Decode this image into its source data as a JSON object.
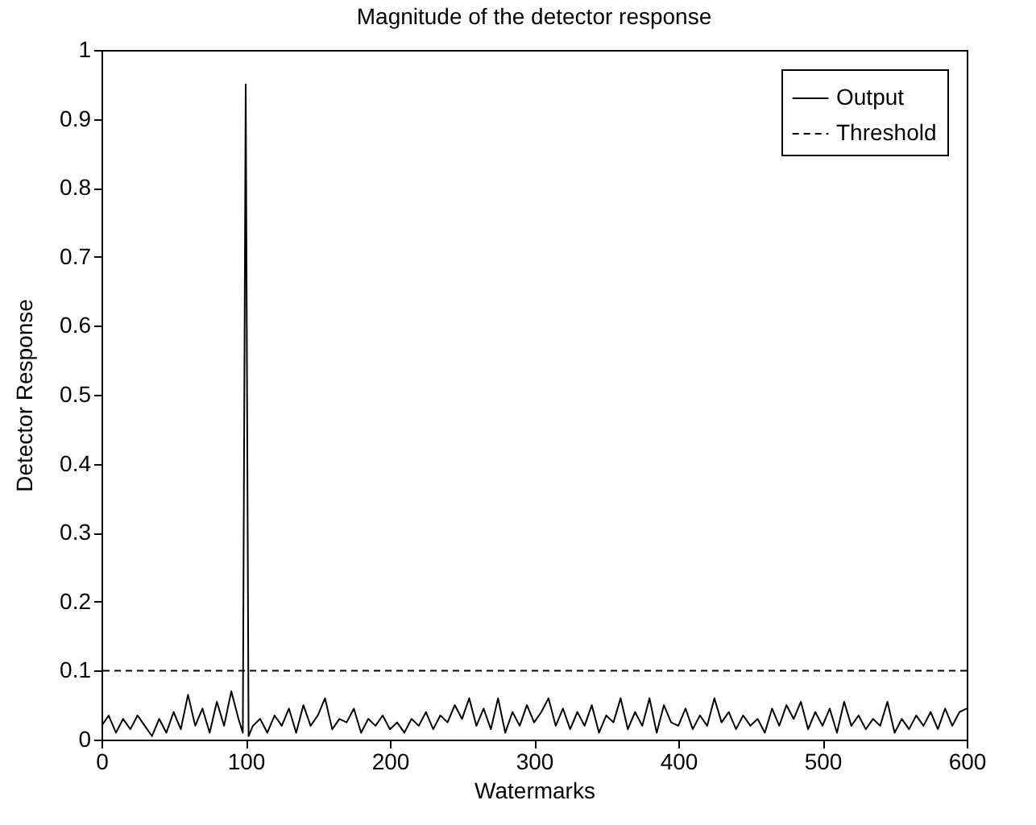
{
  "chart_data": {
    "type": "line",
    "title": "Magnitude of the detector response",
    "xlabel": "Watermarks",
    "ylabel": "Detector Response",
    "xlim": [
      0,
      600
    ],
    "xticks": [
      0,
      100,
      200,
      300,
      400,
      500,
      600
    ],
    "ylim": [
      0,
      1
    ],
    "yticks": [
      0,
      0.1,
      0.2,
      0.3,
      0.4,
      0.5,
      0.6,
      0.7,
      0.8,
      0.9,
      1
    ],
    "grid": false,
    "legend": "top right",
    "line_style": "solid",
    "marker": "none",
    "ref_lines": [
      {
        "axis": "y",
        "value": 0.1,
        "label": "Threshold",
        "color": "#000000",
        "line_style": "dashed"
      }
    ],
    "series": [
      {
        "name": "Output",
        "color": "#000000",
        "x": [
          0,
          5,
          10,
          15,
          20,
          25,
          30,
          35,
          40,
          45,
          50,
          55,
          60,
          65,
          70,
          75,
          80,
          85,
          90,
          95,
          98,
          100,
          102,
          105,
          110,
          115,
          120,
          125,
          130,
          135,
          140,
          145,
          150,
          155,
          160,
          165,
          170,
          175,
          180,
          185,
          190,
          195,
          200,
          205,
          210,
          215,
          220,
          225,
          230,
          235,
          240,
          245,
          250,
          255,
          260,
          265,
          270,
          275,
          280,
          285,
          290,
          295,
          300,
          305,
          310,
          315,
          320,
          325,
          330,
          335,
          340,
          345,
          350,
          355,
          360,
          365,
          370,
          375,
          380,
          385,
          390,
          395,
          400,
          405,
          410,
          415,
          420,
          425,
          430,
          435,
          440,
          445,
          450,
          455,
          460,
          465,
          470,
          475,
          480,
          485,
          490,
          495,
          500,
          505,
          510,
          515,
          520,
          525,
          530,
          535,
          540,
          545,
          550,
          555,
          560,
          565,
          570,
          575,
          580,
          585,
          590,
          595,
          600
        ],
        "values": [
          0.02,
          0.035,
          0.01,
          0.03,
          0.015,
          0.035,
          0.02,
          0.005,
          0.03,
          0.01,
          0.04,
          0.015,
          0.065,
          0.02,
          0.045,
          0.01,
          0.055,
          0.02,
          0.07,
          0.03,
          0.01,
          0.95,
          0.005,
          0.02,
          0.03,
          0.01,
          0.035,
          0.02,
          0.045,
          0.01,
          0.05,
          0.02,
          0.035,
          0.06,
          0.015,
          0.03,
          0.025,
          0.045,
          0.01,
          0.03,
          0.02,
          0.035,
          0.015,
          0.025,
          0.01,
          0.03,
          0.02,
          0.04,
          0.015,
          0.035,
          0.025,
          0.05,
          0.03,
          0.06,
          0.02,
          0.045,
          0.015,
          0.06,
          0.01,
          0.04,
          0.02,
          0.05,
          0.025,
          0.04,
          0.06,
          0.02,
          0.045,
          0.015,
          0.04,
          0.02,
          0.05,
          0.01,
          0.035,
          0.025,
          0.06,
          0.015,
          0.04,
          0.02,
          0.06,
          0.01,
          0.05,
          0.025,
          0.02,
          0.045,
          0.015,
          0.035,
          0.02,
          0.06,
          0.025,
          0.04,
          0.015,
          0.035,
          0.02,
          0.03,
          0.01,
          0.045,
          0.02,
          0.05,
          0.03,
          0.055,
          0.015,
          0.04,
          0.02,
          0.045,
          0.01,
          0.055,
          0.02,
          0.035,
          0.015,
          0.03,
          0.02,
          0.055,
          0.01,
          0.03,
          0.015,
          0.035,
          0.02,
          0.04,
          0.015,
          0.045,
          0.02,
          0.04,
          0.045
        ]
      }
    ]
  }
}
